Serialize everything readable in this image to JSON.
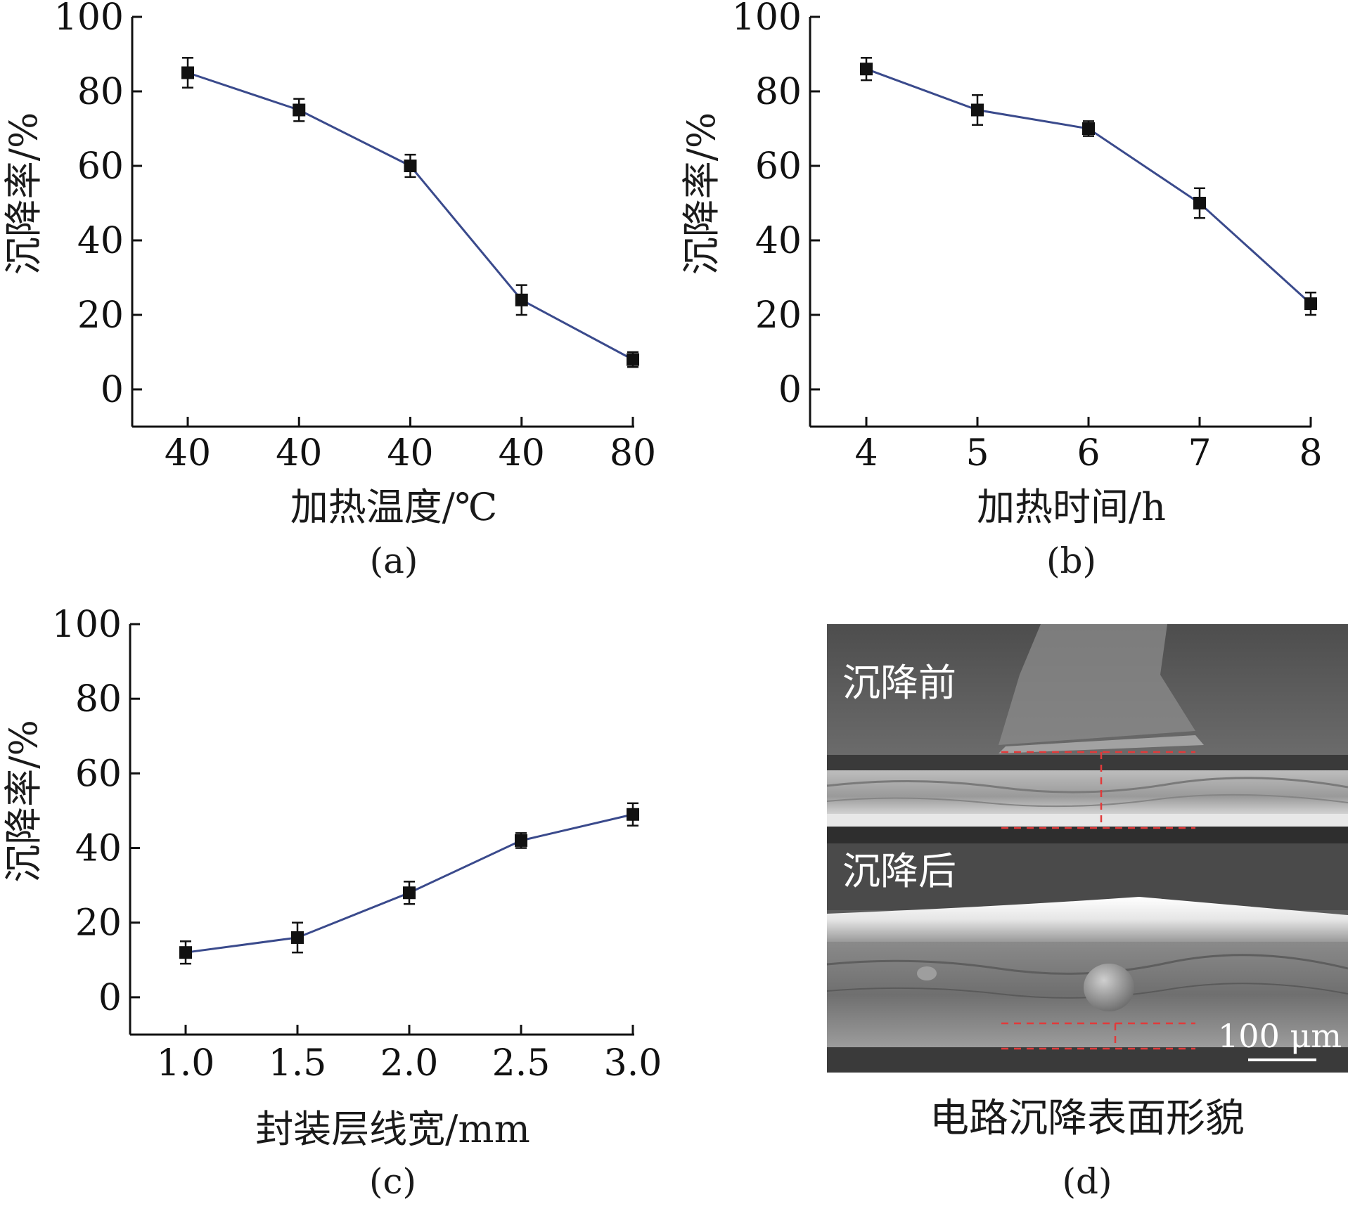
{
  "colors": {
    "line": "#3a4a8c",
    "marker": "#111111",
    "axis": "#111111",
    "guide": "#e23a3a",
    "sem_bg": "#5a5a5a"
  },
  "chart_data": [
    {
      "panel": "(a)",
      "type": "line",
      "xlabel": "加热温度/℃",
      "ylabel": "沉降率/%",
      "categories": [
        "40",
        "40",
        "40",
        "40",
        "80"
      ],
      "values": [
        85,
        75,
        60,
        24,
        8
      ],
      "errors": [
        4,
        3,
        3,
        4,
        2
      ],
      "yticks": [
        "0",
        "20",
        "40",
        "60",
        "80",
        "100"
      ],
      "ylim": [
        -10,
        100
      ],
      "grid": false
    },
    {
      "panel": "(b)",
      "type": "line",
      "xlabel": "加热时间/h",
      "ylabel": "沉降率/%",
      "categories": [
        "4",
        "5",
        "6",
        "7",
        "8"
      ],
      "values": [
        86,
        75,
        70,
        50,
        23
      ],
      "errors": [
        3,
        4,
        2,
        4,
        3
      ],
      "yticks": [
        "0",
        "20",
        "40",
        "60",
        "80",
        "100"
      ],
      "ylim": [
        -10,
        100
      ],
      "grid": false
    },
    {
      "panel": "(c)",
      "type": "line",
      "xlabel": "封装层线宽/mm",
      "ylabel": "沉降率/%",
      "categories": [
        "1.0",
        "1.5",
        "2.0",
        "2.5",
        "3.0"
      ],
      "values": [
        12,
        16,
        28,
        42,
        49
      ],
      "errors": [
        3,
        4,
        3,
        2,
        3
      ],
      "yticks": [
        "0",
        "20",
        "40",
        "60",
        "80",
        "100"
      ],
      "ylim": [
        -10,
        100
      ],
      "grid": false
    }
  ],
  "panel_d": {
    "panel": "(d)",
    "caption": "电路沉降表面形貌",
    "label_before": "沉降前",
    "label_after": "沉降后",
    "scale_bar": "100 μm"
  }
}
